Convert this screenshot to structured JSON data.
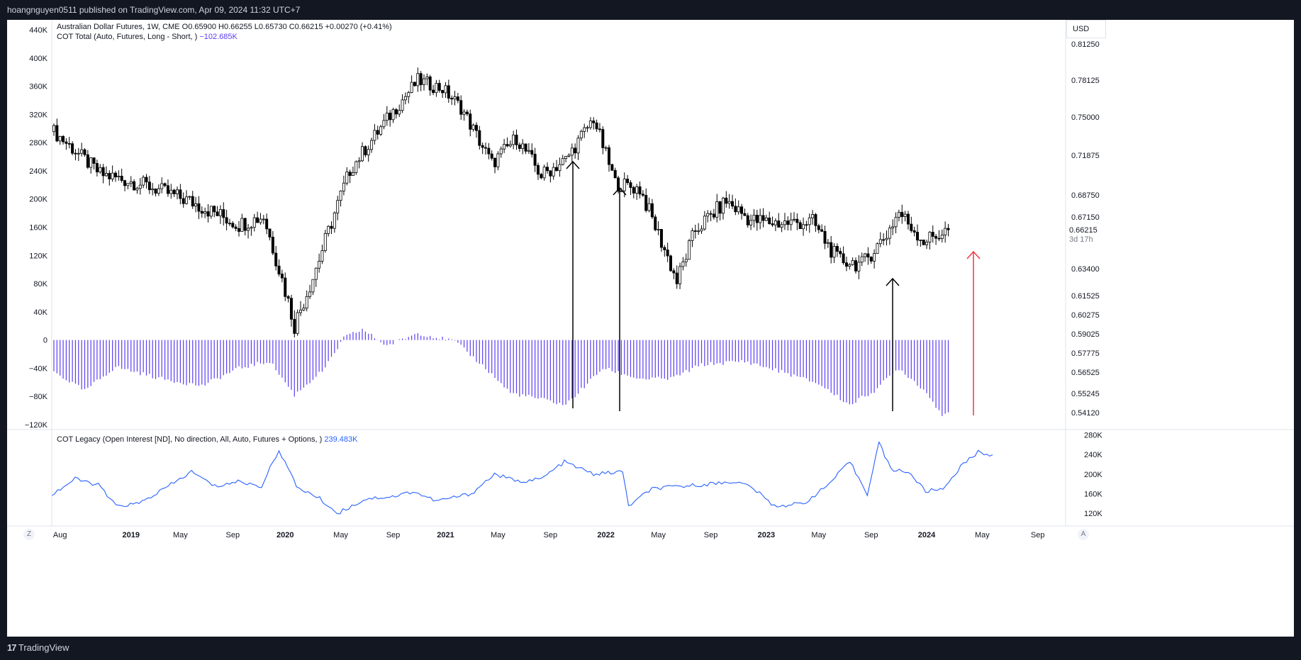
{
  "header": {
    "publish_line": "hoangnguyen0511 published on TradingView.com, Apr 09, 2024 11:32 UTC+7"
  },
  "footer": {
    "brand": "TradingView"
  },
  "legend": {
    "main_title": "Australian Dollar Futures, 1W, CME  O0.65900  H0.66255  L0.65730  C0.66215  +0.00270 (+0.41%)",
    "cot_total_label": "COT Total (Auto, Futures, Long - Short, )",
    "cot_total_value": "−102.685K",
    "cot_legacy_label": "COT Legacy (Open Interest [ND], No direction, All, Auto, Futures + Options, )",
    "cot_legacy_value": "239.483K"
  },
  "currency": "USD",
  "price_badge": {
    "value": "0.66215",
    "countdown": "3d 17h"
  },
  "buttons": {
    "z": "Z",
    "a": "A"
  },
  "chart_data": [
    {
      "type": "candlestick",
      "title": "Australian Dollar Futures, 1W, CME",
      "x_ticks": [
        "Aug",
        "2019",
        "May",
        "Sep",
        "2020",
        "May",
        "Sep",
        "2021",
        "May",
        "Sep",
        "2022",
        "May",
        "Sep",
        "2023",
        "May",
        "Sep",
        "2024",
        "May",
        "Sep"
      ],
      "price_axis_ticks": [
        "0.81250",
        "0.78125",
        "0.75000",
        "0.71875",
        "0.68750",
        "0.67150",
        "0.63400",
        "0.61525",
        "0.60275",
        "0.59025",
        "0.57775",
        "0.56525",
        "0.55245",
        "0.54120"
      ],
      "price_anchors": [
        {
          "week": 0,
          "close": 0.738
        },
        {
          "week": 15,
          "close": 0.704
        },
        {
          "week": 30,
          "close": 0.695
        },
        {
          "week": 45,
          "close": 0.682
        },
        {
          "week": 60,
          "close": 0.666
        },
        {
          "week": 68,
          "close": 0.672
        },
        {
          "week": 78,
          "close": 0.596
        },
        {
          "week": 84,
          "close": 0.628
        },
        {
          "week": 96,
          "close": 0.707
        },
        {
          "week": 108,
          "close": 0.748
        },
        {
          "week": 118,
          "close": 0.781
        },
        {
          "week": 126,
          "close": 0.774
        },
        {
          "week": 132,
          "close": 0.758
        },
        {
          "week": 142,
          "close": 0.712
        },
        {
          "week": 150,
          "close": 0.733
        },
        {
          "week": 158,
          "close": 0.703
        },
        {
          "week": 166,
          "close": 0.715
        },
        {
          "week": 175,
          "close": 0.749
        },
        {
          "week": 182,
          "close": 0.697
        },
        {
          "week": 190,
          "close": 0.692
        },
        {
          "week": 198,
          "close": 0.648
        },
        {
          "week": 202,
          "close": 0.625
        },
        {
          "week": 208,
          "close": 0.662
        },
        {
          "week": 218,
          "close": 0.683
        },
        {
          "week": 226,
          "close": 0.669
        },
        {
          "week": 236,
          "close": 0.667
        },
        {
          "week": 246,
          "close": 0.668
        },
        {
          "week": 254,
          "close": 0.641
        },
        {
          "week": 262,
          "close": 0.637
        },
        {
          "week": 270,
          "close": 0.659
        },
        {
          "week": 274,
          "close": 0.675
        },
        {
          "week": 282,
          "close": 0.654
        },
        {
          "week": 290,
          "close": 0.662
        }
      ],
      "last_close": 0.66215,
      "annotations": [
        {
          "kind": "arrow-up",
          "week": 192,
          "color": "#000000"
        },
        {
          "kind": "arrow-up",
          "week": 207,
          "color": "#000000"
        },
        {
          "kind": "arrow-up",
          "week": 262,
          "color": "#000000"
        },
        {
          "kind": "arrow-up",
          "week": 287,
          "color": "#f23645"
        }
      ]
    },
    {
      "type": "histogram",
      "title": "COT Total (Auto, Futures, Long - Short, )",
      "axis_ticks": [
        "440K",
        "400K",
        "360K",
        "320K",
        "280K",
        "240K",
        "200K",
        "160K",
        "120K",
        "80K",
        "40K",
        "0",
        "−40K",
        "−80K",
        "−120K"
      ],
      "ylim": [
        -120,
        440
      ],
      "unit": "K",
      "color": "#5b3cf0",
      "anchors": [
        {
          "week": 0,
          "value": -45
        },
        {
          "week": 10,
          "value": -72
        },
        {
          "week": 20,
          "value": -38
        },
        {
          "week": 35,
          "value": -55
        },
        {
          "week": 48,
          "value": -65
        },
        {
          "week": 60,
          "value": -40
        },
        {
          "week": 70,
          "value": -30
        },
        {
          "week": 78,
          "value": -78
        },
        {
          "week": 88,
          "value": -40
        },
        {
          "week": 94,
          "value": 3
        },
        {
          "week": 100,
          "value": 15
        },
        {
          "week": 108,
          "value": -8
        },
        {
          "week": 118,
          "value": 10
        },
        {
          "week": 130,
          "value": -2
        },
        {
          "week": 140,
          "value": -40
        },
        {
          "week": 148,
          "value": -75
        },
        {
          "week": 156,
          "value": -82
        },
        {
          "week": 166,
          "value": -92
        },
        {
          "week": 178,
          "value": -40
        },
        {
          "week": 190,
          "value": -55
        },
        {
          "week": 200,
          "value": -55
        },
        {
          "week": 210,
          "value": -35
        },
        {
          "week": 224,
          "value": -30
        },
        {
          "week": 236,
          "value": -45
        },
        {
          "week": 248,
          "value": -62
        },
        {
          "week": 258,
          "value": -92
        },
        {
          "week": 266,
          "value": -72
        },
        {
          "week": 274,
          "value": -40
        },
        {
          "week": 282,
          "value": -70
        },
        {
          "week": 288,
          "value": -105
        },
        {
          "week": 290,
          "value": -102.685
        }
      ]
    },
    {
      "type": "line",
      "title": "COT Legacy (Open Interest [ND], No direction, All, Auto, Futures + Options, )",
      "axis_ticks": [
        "280K",
        "240K",
        "200K",
        "160K",
        "120K"
      ],
      "ylim": [
        100,
        285
      ],
      "unit": "K",
      "color": "#2962ff",
      "anchors": [
        {
          "week": 0,
          "value": 158
        },
        {
          "week": 8,
          "value": 190
        },
        {
          "week": 16,
          "value": 178
        },
        {
          "week": 22,
          "value": 135
        },
        {
          "week": 30,
          "value": 140
        },
        {
          "week": 40,
          "value": 175
        },
        {
          "week": 48,
          "value": 205
        },
        {
          "week": 56,
          "value": 175
        },
        {
          "week": 64,
          "value": 185
        },
        {
          "week": 72,
          "value": 175
        },
        {
          "week": 78,
          "value": 250
        },
        {
          "week": 84,
          "value": 175
        },
        {
          "week": 92,
          "value": 150
        },
        {
          "week": 98,
          "value": 120
        },
        {
          "week": 108,
          "value": 150
        },
        {
          "week": 118,
          "value": 155
        },
        {
          "week": 124,
          "value": 165
        },
        {
          "week": 132,
          "value": 145
        },
        {
          "week": 144,
          "value": 160
        },
        {
          "week": 152,
          "value": 200
        },
        {
          "week": 160,
          "value": 185
        },
        {
          "week": 168,
          "value": 190
        },
        {
          "week": 176,
          "value": 225
        },
        {
          "week": 186,
          "value": 200
        },
        {
          "week": 196,
          "value": 205
        },
        {
          "week": 198,
          "value": 135
        },
        {
          "week": 206,
          "value": 170
        },
        {
          "week": 216,
          "value": 175
        },
        {
          "week": 226,
          "value": 180
        },
        {
          "week": 234,
          "value": 185
        },
        {
          "week": 240,
          "value": 175
        },
        {
          "week": 248,
          "value": 135
        },
        {
          "week": 258,
          "value": 140
        },
        {
          "week": 266,
          "value": 175
        },
        {
          "week": 274,
          "value": 225
        },
        {
          "week": 280,
          "value": 160
        },
        {
          "week": 284,
          "value": 265
        },
        {
          "week": 288,
          "value": 210
        },
        {
          "week": 294,
          "value": 205
        },
        {
          "week": 300,
          "value": 165
        },
        {
          "week": 306,
          "value": 170
        },
        {
          "week": 312,
          "value": 215
        },
        {
          "week": 318,
          "value": 245
        },
        {
          "week": 323,
          "value": 239.483
        }
      ]
    }
  ]
}
